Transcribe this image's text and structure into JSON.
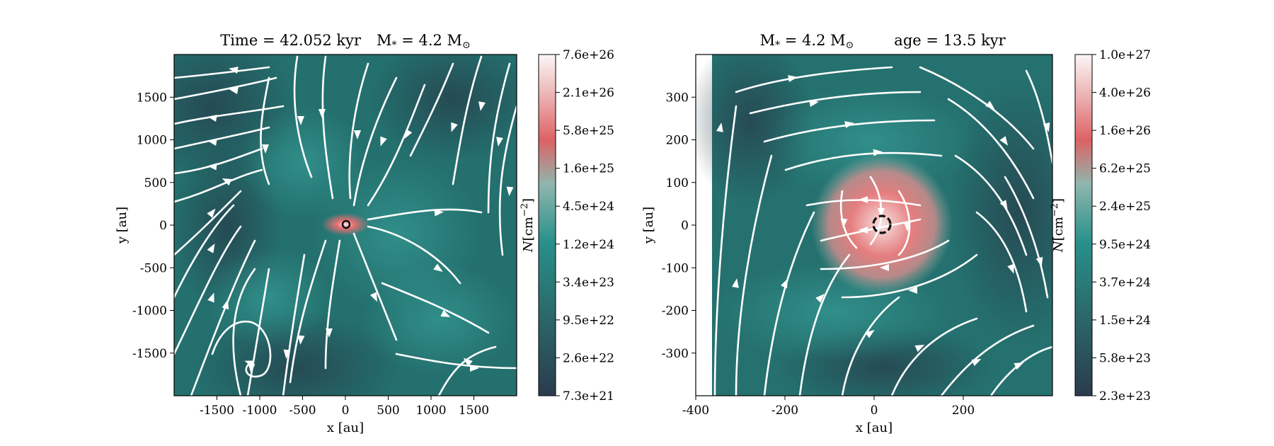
{
  "chart_data": [
    {
      "type": "heatmap",
      "subtype": "column density map with velocity streamlines",
      "title": "Time = 42.052 kyr    M$_*$ = 4.2 M$_\\odot$",
      "title_parts": [
        "Time = 42.052 kyr",
        "M",
        "*",
        " = 4.2 M",
        "⊙"
      ],
      "xlabel": "x [au]",
      "ylabel": "y [au]",
      "xlim": [
        -2000,
        2000
      ],
      "ylim": [
        -2000,
        2000
      ],
      "xticks": [
        -1500,
        -1000,
        -500,
        0,
        500,
        1000,
        1500
      ],
      "yticks": [
        -1500,
        -1000,
        -500,
        0,
        500,
        1000,
        1500
      ],
      "colorbar": {
        "label_symbol": "N",
        "label_unit": "[cm",
        "label_exp": "−2",
        "label_close": "]",
        "scale": "log",
        "ticks": [
          "7.3e+21",
          "2.6e+22",
          "9.5e+22",
          "3.4e+23",
          "1.2e+24",
          "4.5e+24",
          "1.6e+25",
          "5.8e+25",
          "2.1e+26",
          "7.6e+26"
        ],
        "colormap": [
          "#2a3b4d",
          "#257f7a",
          "#dd6265",
          "#fdf6f6"
        ]
      },
      "features": {
        "center": [
          0,
          0
        ],
        "peak_region_radius_au": 150,
        "sink_marker": "circle at origin"
      }
    },
    {
      "type": "heatmap",
      "subtype": "column density map with velocity streamlines (zoom)",
      "title_left": "M$_*$ = 4.2 M$_\\odot$",
      "title_left_parts": [
        "M",
        "*",
        " = 4.2 M",
        "⊙"
      ],
      "title_right": "age = 13.5 kyr",
      "xlabel": "x [au]",
      "ylabel": "y [au]",
      "xlim": [
        -400,
        400
      ],
      "ylim": [
        -400,
        400
      ],
      "xticks": [
        -400,
        -200,
        0,
        200
      ],
      "yticks": [
        -300,
        -200,
        -100,
        0,
        100,
        200,
        300
      ],
      "colorbar": {
        "label_symbol": "N",
        "label_unit": "[cm",
        "label_exp": "−2",
        "label_close": "]",
        "scale": "log",
        "ticks": [
          "2.3e+23",
          "5.8e+23",
          "1.5e+24",
          "3.7e+24",
          "9.5e+24",
          "2.4e+25",
          "6.2e+25",
          "1.6e+26",
          "4.0e+26",
          "1.0e+27"
        ],
        "colormap": [
          "#2a3b4d",
          "#257f7a",
          "#dd6265",
          "#fdf6f6"
        ]
      },
      "features": {
        "center": [
          0,
          0
        ],
        "disk_radius_au": 150,
        "sink_marker": "dashed circle at origin"
      }
    }
  ]
}
